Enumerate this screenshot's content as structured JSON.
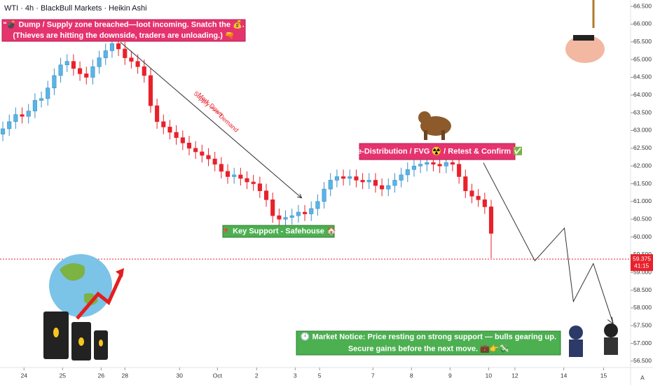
{
  "chart_data": {
    "type": "candlestick",
    "title": "WTI · 4h · BlackBull Markets · Heikin Ashi",
    "up_color": "#5ab4e5",
    "down_color": "#e8212b",
    "open": [
      62.9,
      63.05,
      63.25,
      63.45,
      63.4,
      63.55,
      63.85,
      63.9,
      64.2,
      64.55,
      64.85,
      64.95,
      64.75,
      64.6,
      64.5,
      64.8,
      65.05,
      65.25,
      65.45,
      65.3,
      65.05,
      64.95,
      64.8,
      64.55,
      63.7,
      63.25,
      63.1,
      62.95,
      62.8,
      62.65,
      62.5,
      62.4,
      62.3,
      62.2,
      62.05,
      61.85,
      61.7,
      61.75,
      61.65,
      61.55,
      61.5,
      61.3,
      61.05,
      60.6,
      60.5,
      60.55,
      60.6,
      60.7,
      60.65,
      60.8,
      61.0,
      61.35,
      61.6,
      61.7,
      61.65,
      61.7,
      61.6,
      61.55,
      61.6,
      61.45,
      61.35,
      61.45,
      61.6,
      61.75,
      61.9,
      62.0,
      62.05,
      62.1,
      62.05,
      62.0,
      62.1,
      62.05,
      61.7,
      61.3,
      61.15,
      61.05,
      60.85
    ],
    "high": [
      63.25,
      63.45,
      63.65,
      63.65,
      63.75,
      64.05,
      64.1,
      64.4,
      64.75,
      65.05,
      65.15,
      65.15,
      64.95,
      64.8,
      65.0,
      65.25,
      65.45,
      65.65,
      65.65,
      65.5,
      65.25,
      65.15,
      65.0,
      64.75,
      63.9,
      63.45,
      63.3,
      63.15,
      63.0,
      62.85,
      62.7,
      62.6,
      62.5,
      62.4,
      62.25,
      62.05,
      61.95,
      61.95,
      61.85,
      61.75,
      61.7,
      61.5,
      61.25,
      60.8,
      60.75,
      60.8,
      60.9,
      60.9,
      61.0,
      61.2,
      61.55,
      61.8,
      61.9,
      61.9,
      61.9,
      61.9,
      61.8,
      61.8,
      61.8,
      61.65,
      61.65,
      61.8,
      61.95,
      62.1,
      62.2,
      62.25,
      62.3,
      62.3,
      62.25,
      62.3,
      62.3,
      62.25,
      61.9,
      61.5,
      61.35,
      61.25,
      61.05
    ],
    "low": [
      62.7,
      62.85,
      63.05,
      63.2,
      63.2,
      63.35,
      63.65,
      63.7,
      64.0,
      64.35,
      64.65,
      64.55,
      64.4,
      64.3,
      64.3,
      64.6,
      64.85,
      65.05,
      65.1,
      64.85,
      64.75,
      64.6,
      64.35,
      63.5,
      63.05,
      62.9,
      62.75,
      62.6,
      62.45,
      62.3,
      62.2,
      62.1,
      62.0,
      61.85,
      61.65,
      61.5,
      61.5,
      61.45,
      61.35,
      61.3,
      61.1,
      60.85,
      60.4,
      60.3,
      60.3,
      60.35,
      60.4,
      60.45,
      60.45,
      60.6,
      60.8,
      61.15,
      61.4,
      61.45,
      61.45,
      61.4,
      61.35,
      61.35,
      61.25,
      61.15,
      61.15,
      61.25,
      61.4,
      61.55,
      61.7,
      61.8,
      61.85,
      61.85,
      61.8,
      61.8,
      61.85,
      61.5,
      61.1,
      60.95,
      60.85,
      60.65,
      59.4
    ],
    "close": [
      63.05,
      63.25,
      63.45,
      63.4,
      63.55,
      63.85,
      63.9,
      64.2,
      64.55,
      64.85,
      64.95,
      64.75,
      64.6,
      64.5,
      64.8,
      65.05,
      65.25,
      65.45,
      65.3,
      65.05,
      64.95,
      64.8,
      64.55,
      63.7,
      63.25,
      63.1,
      62.95,
      62.8,
      62.65,
      62.5,
      62.4,
      62.3,
      62.2,
      62.05,
      61.85,
      61.7,
      61.75,
      61.65,
      61.55,
      61.5,
      61.3,
      61.05,
      60.6,
      60.5,
      60.55,
      60.6,
      60.7,
      60.65,
      60.8,
      61.0,
      61.35,
      61.6,
      61.7,
      61.65,
      61.7,
      61.6,
      61.55,
      61.6,
      61.45,
      61.35,
      61.45,
      61.6,
      61.75,
      61.9,
      62.0,
      62.05,
      62.1,
      62.05,
      62.0,
      62.1,
      62.05,
      61.7,
      61.3,
      61.15,
      61.05,
      60.85,
      60.1
    ],
    "xlim": [
      -0.44,
      97.7
    ],
    "xticks": [
      {
        "value": 3.3,
        "label": "24"
      },
      {
        "value": 9.3,
        "label": "25"
      },
      {
        "value": 15.3,
        "label": "26"
      },
      {
        "value": 19,
        "label": "28"
      },
      {
        "value": 27.5,
        "label": "30"
      },
      {
        "value": 33.4,
        "label": "Oct"
      },
      {
        "value": 39.5,
        "label": "2"
      },
      {
        "value": 45.5,
        "label": "3"
      },
      {
        "value": 49.3,
        "label": "5"
      },
      {
        "value": 57.6,
        "label": "7"
      },
      {
        "value": 63.6,
        "label": "8"
      },
      {
        "value": 69.6,
        "label": "9"
      },
      {
        "value": 75.6,
        "label": "10"
      },
      {
        "value": 79.7,
        "label": "12"
      },
      {
        "value": 87.3,
        "label": "14"
      },
      {
        "value": 93.5,
        "label": "15"
      }
    ],
    "ylim": [
      56.32,
      66.68
    ],
    "yticks": [
      {
        "value": 56.5,
        "label": "56.500"
      },
      {
        "value": 57,
        "label": "57.000"
      },
      {
        "value": 57.5,
        "label": "57.500"
      },
      {
        "value": 58,
        "label": "58.000"
      },
      {
        "value": 58.5,
        "label": "58.500"
      },
      {
        "value": 59,
        "label": "59.000"
      },
      {
        "value": 59.5,
        "label": "59.500"
      },
      {
        "value": 60,
        "label": "60.000"
      },
      {
        "value": 60.5,
        "label": "60.500"
      },
      {
        "value": 61,
        "label": "61.000"
      },
      {
        "value": 61.5,
        "label": "61.500"
      },
      {
        "value": 62,
        "label": "62.000"
      },
      {
        "value": 62.5,
        "label": "62.500"
      },
      {
        "value": 63,
        "label": "63.000"
      },
      {
        "value": 63.5,
        "label": "63.500"
      },
      {
        "value": 64,
        "label": "64.000"
      },
      {
        "value": 64.5,
        "label": "64.500"
      },
      {
        "value": 65,
        "label": "65.000"
      },
      {
        "value": 65.5,
        "label": "65.500"
      },
      {
        "value": 66,
        "label": "66.000"
      },
      {
        "value": 66.5,
        "label": "66.500"
      }
    ],
    "current_price": {
      "value": 59.375,
      "label": "59.375"
    },
    "countdown": "41:15",
    "projection": {
      "x": [
        74.8,
        82.8,
        87.4,
        88.8,
        91.9,
        95.0
      ],
      "values": [
        62.09,
        59.33,
        60.25,
        58.18,
        59.25,
        57.55
      ]
    },
    "markdown_arrow": {
      "x": [
        18.3,
        46.5
      ],
      "values": [
        65.49,
        61.1
      ]
    },
    "markdown_labels": [
      "Mark Down",
      "Supply >>> Demand"
    ],
    "annotations": {
      "dump": [
        "“💣 Dump / Supply zone breached—loot incoming. Snatch the 💰.",
        "(Thieves are hitting the downside, traders are unloading.) 🔫"
      ],
      "redistribution": "Re-Distribution / FVG ☢️ / Retest & Confirm ✅",
      "support": "🔻 Key Support - Safehouse 🏠",
      "notice": [
        "🕛 Market Notice: Price resting on strong support — bulls gearing up.",
        "Secure gains before the next move. 💼👉💸"
      ]
    },
    "axis_mode": "A"
  }
}
